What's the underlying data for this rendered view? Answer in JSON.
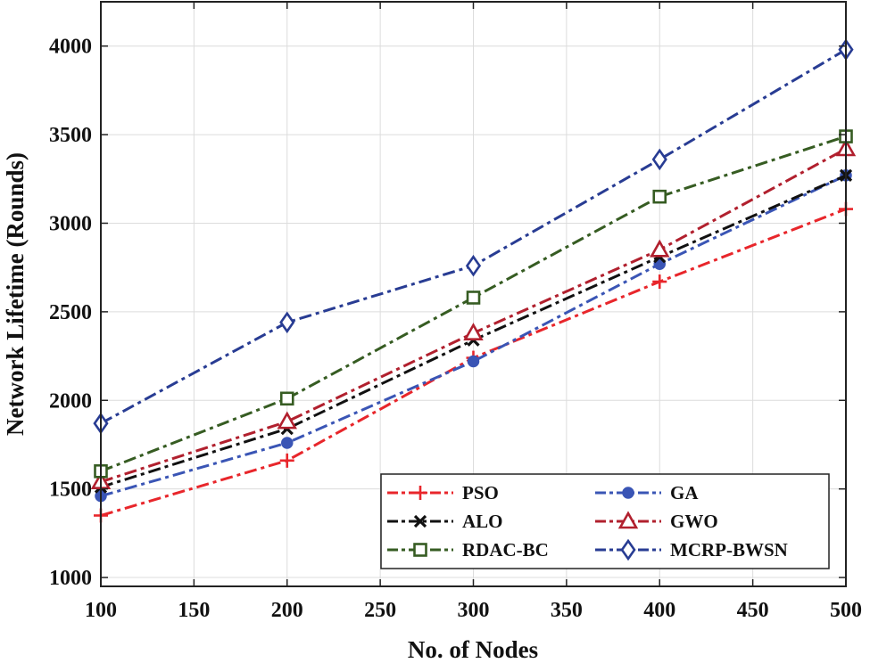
{
  "chart_data": {
    "type": "line",
    "title": "",
    "xlabel": "No. of Nodes",
    "ylabel": "Network Lifetime (Rounds)",
    "x": [
      100,
      200,
      300,
      400,
      500
    ],
    "xlim": [
      100,
      500
    ],
    "ylim": [
      950,
      4250
    ],
    "xticks": [
      100,
      150,
      200,
      250,
      300,
      350,
      400,
      450,
      500
    ],
    "yticks": [
      1000,
      1500,
      2000,
      2500,
      3000,
      3500,
      4000
    ],
    "grid": true,
    "legend_position": "bottom-right",
    "series": [
      {
        "name": "PSO",
        "color": "#e8262b",
        "marker": "plus",
        "values": [
          1350,
          1660,
          2240,
          2670,
          3080
        ]
      },
      {
        "name": "GA",
        "color": "#3a55b5",
        "marker": "circle",
        "values": [
          1460,
          1760,
          2220,
          2770,
          3270
        ]
      },
      {
        "name": "ALO",
        "color": "#111111",
        "marker": "x",
        "values": [
          1510,
          1840,
          2340,
          2810,
          3270
        ]
      },
      {
        "name": "GWO",
        "color": "#b1202e",
        "marker": "triangle",
        "values": [
          1540,
          1880,
          2380,
          2850,
          3420
        ]
      },
      {
        "name": "RDAC-BC",
        "color": "#365c22",
        "marker": "square",
        "values": [
          1600,
          2010,
          2580,
          3150,
          3490
        ]
      },
      {
        "name": "MCRP-BWSN",
        "color": "#283c93",
        "marker": "diamond",
        "values": [
          1870,
          2440,
          2760,
          3360,
          3980
        ]
      }
    ]
  }
}
